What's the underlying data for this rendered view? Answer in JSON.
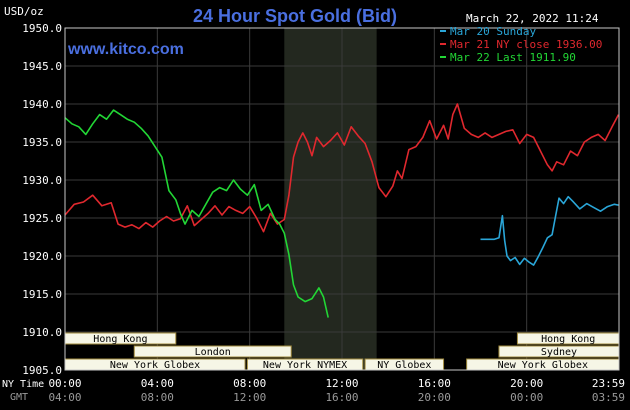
{
  "chart_data": {
    "type": "line",
    "title": "24 Hour Spot Gold (Bid)",
    "source_label": "www.kitco.com",
    "date_label": "March 22, 2022 11:24",
    "ylabel": "USD/oz",
    "ylim": [
      1905.0,
      1950.0
    ],
    "yticks": [
      "1905.0",
      "1910.0",
      "1915.0",
      "1920.0",
      "1925.0",
      "1930.0",
      "1935.0",
      "1940.0",
      "1945.0",
      "1950.0"
    ],
    "x_axis_unit": "hours (NY time)",
    "xlim": [
      0,
      24
    ],
    "ny_time_caption": "NY Time",
    "gmt_caption": "GMT",
    "ny_time_ticks": [
      "00:00",
      "04:00",
      "08:00",
      "12:00",
      "16:00",
      "20:00",
      "23:59"
    ],
    "gmt_ticks": [
      "04:00",
      "08:00",
      "12:00",
      "16:00",
      "20:00",
      "00:00",
      "03:59"
    ],
    "tick_hours": [
      0,
      4,
      8,
      12,
      16,
      20,
      23.98
    ],
    "shaded_session": [
      9.5,
      13.5
    ],
    "grid": true,
    "legend_position": "top-right",
    "colors": {
      "background": "#000000",
      "plot_frame": "#c8c8c8",
      "title": "#4a6fe0",
      "source": "#4a6fe0",
      "text": "#ffffff",
      "grid": "#3a3a3a",
      "shade": "#23281f",
      "session_bar_fill": "#f6f6e6",
      "session_bar_border": "#a08a3c"
    },
    "series": [
      {
        "name": "Mar 20 Sunday",
        "color": "#2aa6d8",
        "x": [
          18.0,
          18.3,
          18.6,
          18.8,
          18.95,
          19.05,
          19.15,
          19.3,
          19.5,
          19.7,
          19.9,
          20.1,
          20.3,
          20.5,
          20.7,
          20.9,
          21.1,
          21.25,
          21.4,
          21.6,
          21.8,
          22.0,
          22.3,
          22.6,
          22.9,
          23.2,
          23.5,
          23.8,
          23.98
        ],
        "values": [
          1922.2,
          1922.2,
          1922.2,
          1922.4,
          1925.3,
          1922.0,
          1920.0,
          1919.4,
          1919.8,
          1918.9,
          1919.7,
          1919.2,
          1918.8,
          1919.9,
          1921.1,
          1922.4,
          1922.8,
          1925.2,
          1927.6,
          1926.9,
          1927.8,
          1927.2,
          1926.2,
          1926.9,
          1926.4,
          1925.9,
          1926.5,
          1926.8,
          1926.7
        ]
      },
      {
        "name": "Mar 21 NY close 1936.00",
        "color": "#e0282e",
        "x": [
          0.0,
          0.4,
          0.8,
          1.2,
          1.6,
          2.0,
          2.3,
          2.6,
          2.9,
          3.2,
          3.5,
          3.8,
          4.1,
          4.4,
          4.7,
          5.0,
          5.3,
          5.6,
          5.9,
          6.2,
          6.5,
          6.8,
          7.1,
          7.4,
          7.7,
          8.0,
          8.3,
          8.6,
          8.9,
          9.2,
          9.5,
          9.7,
          9.9,
          10.1,
          10.3,
          10.5,
          10.7,
          10.9,
          11.2,
          11.5,
          11.8,
          12.1,
          12.4,
          12.7,
          13.0,
          13.3,
          13.6,
          13.9,
          14.2,
          14.4,
          14.6,
          14.9,
          15.2,
          15.5,
          15.8,
          16.1,
          16.4,
          16.6,
          16.8,
          17.0,
          17.3,
          17.6,
          17.9,
          18.2,
          18.5,
          18.8,
          19.1,
          19.4,
          19.7,
          20.0,
          20.3,
          20.6,
          20.9,
          21.1,
          21.3,
          21.6,
          21.9,
          22.2,
          22.5,
          22.8,
          23.1,
          23.4,
          23.7,
          23.98
        ],
        "values": [
          1925.4,
          1926.8,
          1927.1,
          1928.0,
          1926.6,
          1927.0,
          1924.2,
          1923.8,
          1924.1,
          1923.6,
          1924.4,
          1923.8,
          1924.6,
          1925.2,
          1924.6,
          1924.9,
          1926.6,
          1924.0,
          1924.8,
          1925.6,
          1926.6,
          1925.4,
          1926.5,
          1926.0,
          1925.6,
          1926.5,
          1925.0,
          1923.2,
          1925.6,
          1924.2,
          1924.8,
          1928.0,
          1933.0,
          1935.0,
          1936.2,
          1935.0,
          1933.2,
          1935.6,
          1934.4,
          1935.2,
          1936.2,
          1934.6,
          1937.0,
          1935.8,
          1934.8,
          1932.4,
          1929.0,
          1927.8,
          1929.2,
          1931.2,
          1930.2,
          1934.0,
          1934.4,
          1935.6,
          1937.8,
          1935.4,
          1937.2,
          1935.4,
          1938.6,
          1940.0,
          1936.8,
          1936.0,
          1935.6,
          1936.2,
          1935.6,
          1936.0,
          1936.4,
          1936.6,
          1934.8,
          1936.0,
          1935.6,
          1933.8,
          1932.0,
          1931.2,
          1932.4,
          1932.0,
          1933.8,
          1933.2,
          1935.0,
          1935.6,
          1936.0,
          1935.2,
          1937.0,
          1938.6
        ]
      },
      {
        "name": "Mar 22 Last 1911.90",
        "color": "#22d635",
        "x": [
          0.0,
          0.3,
          0.6,
          0.9,
          1.2,
          1.5,
          1.8,
          2.1,
          2.4,
          2.7,
          3.0,
          3.3,
          3.6,
          3.9,
          4.2,
          4.5,
          4.8,
          5.0,
          5.2,
          5.5,
          5.8,
          6.1,
          6.4,
          6.7,
          7.0,
          7.3,
          7.6,
          7.9,
          8.2,
          8.5,
          8.8,
          9.1,
          9.3,
          9.5,
          9.7,
          9.9,
          10.1,
          10.4,
          10.7,
          11.0,
          11.2,
          11.4
        ],
        "values": [
          1938.2,
          1937.4,
          1937.0,
          1936.0,
          1937.4,
          1938.6,
          1938.0,
          1939.2,
          1938.6,
          1938.0,
          1937.6,
          1936.8,
          1935.8,
          1934.4,
          1933.0,
          1928.6,
          1927.4,
          1925.6,
          1924.2,
          1926.0,
          1925.2,
          1926.8,
          1928.4,
          1929.0,
          1928.6,
          1930.0,
          1928.8,
          1928.0,
          1929.4,
          1926.0,
          1926.8,
          1924.8,
          1924.2,
          1923.0,
          1920.2,
          1916.2,
          1914.6,
          1914.0,
          1914.4,
          1915.8,
          1914.6,
          1911.9
        ]
      }
    ],
    "session_bars": [
      {
        "label": "Hong Kong",
        "start": 0.0,
        "end": 4.8,
        "row": 0
      },
      {
        "label": "London",
        "start": 3.0,
        "end": 9.8,
        "row": 1
      },
      {
        "label": "New York Globex",
        "start": 0.0,
        "end": 7.8,
        "row": 2
      },
      {
        "label": "New York NYMEX",
        "start": 7.9,
        "end": 12.9,
        "row": 2
      },
      {
        "label": "NY Globex",
        "start": 13.0,
        "end": 16.4,
        "row": 2
      },
      {
        "label": "Hong Kong",
        "start": 19.6,
        "end": 24.0,
        "row": 0
      },
      {
        "label": "Sydney",
        "start": 18.8,
        "end": 24.0,
        "row": 1
      },
      {
        "label": "New York Globex",
        "start": 17.4,
        "end": 24.0,
        "row": 2
      }
    ]
  }
}
